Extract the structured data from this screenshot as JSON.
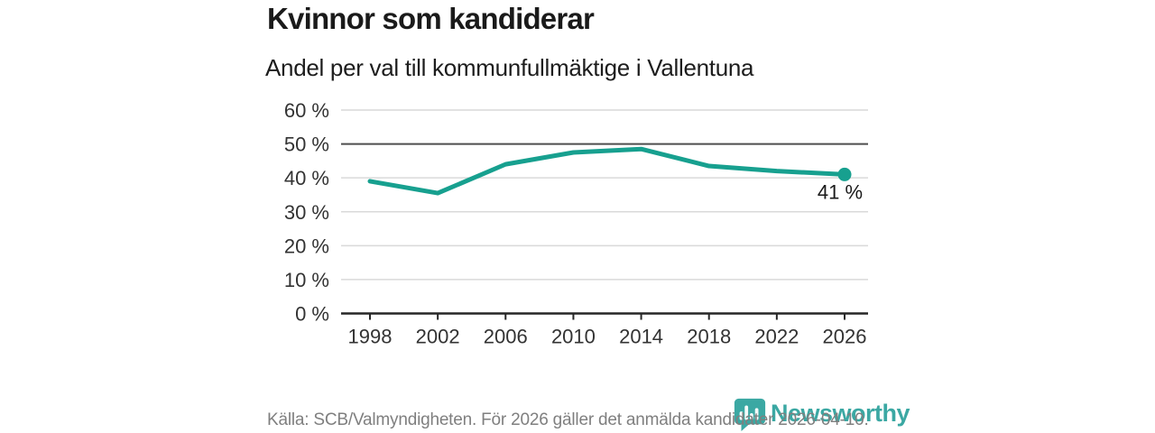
{
  "header": {
    "title": "Kvinnor som kandiderar",
    "subtitle": "Andel per val till kommunfullmäktige i Vallentuna"
  },
  "chart_data": {
    "type": "line",
    "title": "Kvinnor som kandiderar",
    "subtitle": "Andel per val till kommunfullmäktige i Vallentuna",
    "categories": [
      "1998",
      "2002",
      "2006",
      "2010",
      "2014",
      "2018",
      "2022",
      "2026"
    ],
    "values": [
      39,
      35.5,
      44,
      47.5,
      48.5,
      43.5,
      42,
      41
    ],
    "unit": "%",
    "xlabel": "",
    "ylabel": "",
    "ylim": [
      0,
      60
    ],
    "ytick_step": 10,
    "ytick_labels": [
      "0 %",
      "10 %",
      "20 %",
      "30 %",
      "40 %",
      "50 %",
      "60 %"
    ],
    "reference_line": 50,
    "grid": true,
    "legend": "none",
    "end_label": "41 %",
    "line_color": "#17a08f"
  },
  "footer": {
    "source": "Källa: SCB/Valmyndigheten. För 2026 gäller det anmälda kandidater 2026-04-10."
  },
  "brand": {
    "name": "Newsworthy",
    "color": "#3ba8a3",
    "icon": "newsworthy-bubble-chart-icon"
  }
}
